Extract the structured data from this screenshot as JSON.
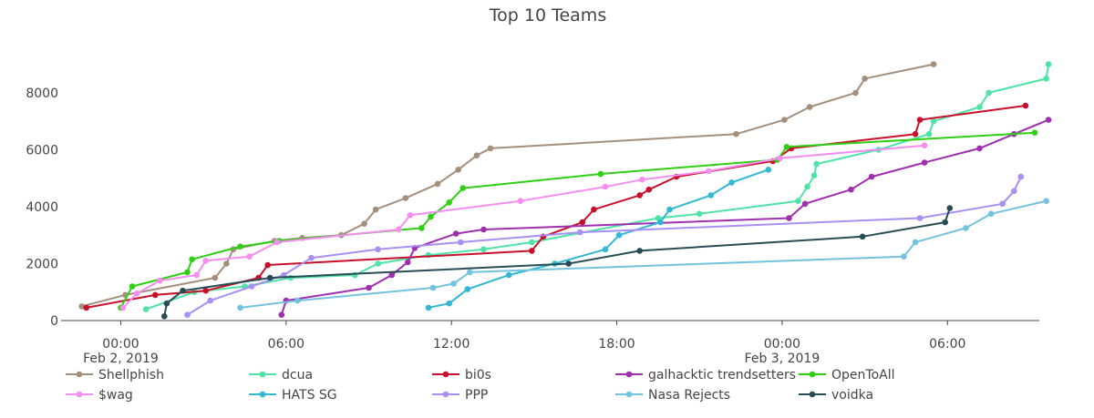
{
  "chart_data": {
    "type": "line",
    "title": "Top 10 Teams",
    "xlabel": "",
    "ylabel": "",
    "x_range": [
      "2019-02-01 21:50",
      "2019-02-03 09:20"
    ],
    "ylim": [
      0,
      9500
    ],
    "y_ticks": [
      0,
      2000,
      4000,
      6000,
      8000
    ],
    "y_tick_labels": [
      "0",
      "2000",
      "4000",
      "6000",
      "8000"
    ],
    "x_ticks": [
      {
        "t": "2019-02-02 00:00",
        "lines": [
          "00:00",
          "Feb 2, 2019"
        ]
      },
      {
        "t": "2019-02-02 06:00",
        "lines": [
          "06:00"
        ]
      },
      {
        "t": "2019-02-02 12:00",
        "lines": [
          "12:00"
        ]
      },
      {
        "t": "2019-02-02 18:00",
        "lines": [
          "18:00"
        ]
      },
      {
        "t": "2019-02-03 00:00",
        "lines": [
          "00:00",
          "Feb 3, 2019"
        ]
      },
      {
        "t": "2019-02-03 06:00",
        "lines": [
          "06:00"
        ]
      }
    ],
    "grid": false,
    "legend_position": "bottom",
    "series": [
      {
        "name": "Shellphish",
        "color": "#a48f7c",
        "points": [
          [
            "2019-02-01 22:35",
            500
          ],
          [
            "2019-02-02 00:10",
            900
          ],
          [
            "2019-02-02 03:25",
            1500
          ],
          [
            "2019-02-02 03:50",
            2000
          ],
          [
            "2019-02-02 04:05",
            2500
          ],
          [
            "2019-02-02 05:35",
            2800
          ],
          [
            "2019-02-02 06:35",
            2900
          ],
          [
            "2019-02-02 08:00",
            3000
          ],
          [
            "2019-02-02 08:50",
            3400
          ],
          [
            "2019-02-02 09:15",
            3900
          ],
          [
            "2019-02-02 10:20",
            4300
          ],
          [
            "2019-02-02 11:30",
            4800
          ],
          [
            "2019-02-02 12:15",
            5300
          ],
          [
            "2019-02-02 12:55",
            5800
          ],
          [
            "2019-02-02 13:25",
            6050
          ],
          [
            "2019-02-02 22:20",
            6550
          ],
          [
            "2019-02-03 00:05",
            7050
          ],
          [
            "2019-02-03 01:00",
            7500
          ],
          [
            "2019-02-03 02:40",
            8000
          ],
          [
            "2019-02-03 03:00",
            8500
          ],
          [
            "2019-02-03 05:30",
            9000
          ]
        ]
      },
      {
        "name": "dcua",
        "color": "#4fe3a8",
        "points": [
          [
            "2019-02-02 00:55",
            400
          ],
          [
            "2019-02-02 02:40",
            1000
          ],
          [
            "2019-02-02 04:30",
            1200
          ],
          [
            "2019-02-02 06:10",
            1500
          ],
          [
            "2019-02-02 08:30",
            1600
          ],
          [
            "2019-02-02 09:20",
            2000
          ],
          [
            "2019-02-02 11:10",
            2300
          ],
          [
            "2019-02-02 13:10",
            2500
          ],
          [
            "2019-02-02 14:55",
            2750
          ],
          [
            "2019-02-02 19:30",
            3600
          ],
          [
            "2019-02-02 21:00",
            3750
          ],
          [
            "2019-02-03 00:35",
            4200
          ],
          [
            "2019-02-03 00:55",
            4700
          ],
          [
            "2019-02-03 01:10",
            5100
          ],
          [
            "2019-02-03 01:15",
            5500
          ],
          [
            "2019-02-03 03:30",
            6000
          ],
          [
            "2019-02-03 05:20",
            6550
          ],
          [
            "2019-02-03 05:30",
            7000
          ],
          [
            "2019-02-03 07:10",
            7500
          ],
          [
            "2019-02-03 07:30",
            8000
          ],
          [
            "2019-02-03 09:35",
            8500
          ],
          [
            "2019-02-03 09:40",
            9000
          ]
        ]
      },
      {
        "name": "bi0s",
        "color": "#c9102b",
        "points": [
          [
            "2019-02-01 22:45",
            450
          ],
          [
            "2019-02-02 01:15",
            900
          ],
          [
            "2019-02-02 03:05",
            1050
          ],
          [
            "2019-02-02 05:00",
            1500
          ],
          [
            "2019-02-02 05:20",
            1950
          ],
          [
            "2019-02-02 14:55",
            2450
          ],
          [
            "2019-02-02 15:20",
            2950
          ],
          [
            "2019-02-02 16:45",
            3450
          ],
          [
            "2019-02-02 17:10",
            3900
          ],
          [
            "2019-02-02 18:50",
            4400
          ],
          [
            "2019-02-02 19:10",
            4600
          ],
          [
            "2019-02-02 20:10",
            5050
          ],
          [
            "2019-02-02 23:40",
            5600
          ],
          [
            "2019-02-03 00:20",
            6050
          ],
          [
            "2019-02-03 04:50",
            6550
          ],
          [
            "2019-02-03 05:00",
            7050
          ],
          [
            "2019-02-03 08:50",
            7550
          ]
        ]
      },
      {
        "name": "galhacktic trendsetters",
        "color": "#a02fb0",
        "points": [
          [
            "2019-02-02 05:50",
            200
          ],
          [
            "2019-02-02 06:00",
            700
          ],
          [
            "2019-02-02 09:00",
            1150
          ],
          [
            "2019-02-02 09:50",
            1600
          ],
          [
            "2019-02-02 10:25",
            2050
          ],
          [
            "2019-02-02 10:40",
            2550
          ],
          [
            "2019-02-02 12:10",
            3050
          ],
          [
            "2019-02-02 13:10",
            3200
          ],
          [
            "2019-02-03 00:15",
            3600
          ],
          [
            "2019-02-03 00:50",
            4100
          ],
          [
            "2019-02-03 02:30",
            4600
          ],
          [
            "2019-02-03 03:15",
            5050
          ],
          [
            "2019-02-03 05:10",
            5550
          ],
          [
            "2019-02-03 07:10",
            6050
          ],
          [
            "2019-02-03 08:25",
            6550
          ],
          [
            "2019-02-03 09:40",
            7050
          ]
        ]
      },
      {
        "name": "OpenToAll",
        "color": "#2fcf14",
        "points": [
          [
            "2019-02-02 00:00",
            450
          ],
          [
            "2019-02-02 00:25",
            1200
          ],
          [
            "2019-02-02 02:25",
            1700
          ],
          [
            "2019-02-02 02:35",
            2150
          ],
          [
            "2019-02-02 04:20",
            2600
          ],
          [
            "2019-02-02 05:45",
            2800
          ],
          [
            "2019-02-02 10:55",
            3250
          ],
          [
            "2019-02-02 11:15",
            3650
          ],
          [
            "2019-02-02 11:55",
            4150
          ],
          [
            "2019-02-02 12:25",
            4650
          ],
          [
            "2019-02-02 17:25",
            5150
          ],
          [
            "2019-02-02 23:50",
            5650
          ],
          [
            "2019-02-03 00:10",
            6100
          ],
          [
            "2019-02-03 09:10",
            6600
          ]
        ]
      },
      {
        "name": "$wag",
        "color": "#f58ef0",
        "points": [
          [
            "2019-02-02 00:05",
            450
          ],
          [
            "2019-02-02 00:35",
            950
          ],
          [
            "2019-02-02 01:25",
            1400
          ],
          [
            "2019-02-02 02:45",
            1600
          ],
          [
            "2019-02-02 03:05",
            2100
          ],
          [
            "2019-02-02 04:40",
            2250
          ],
          [
            "2019-02-02 05:40",
            2750
          ],
          [
            "2019-02-02 10:05",
            3200
          ],
          [
            "2019-02-02 10:30",
            3700
          ],
          [
            "2019-02-02 14:30",
            4200
          ],
          [
            "2019-02-02 17:35",
            4700
          ],
          [
            "2019-02-02 18:55",
            4950
          ],
          [
            "2019-02-02 21:20",
            5250
          ],
          [
            "2019-02-02 23:55",
            5700
          ],
          [
            "2019-02-03 05:10",
            6150
          ]
        ]
      },
      {
        "name": "HATS SG",
        "color": "#32b8d4",
        "points": [
          [
            "2019-02-02 11:10",
            450
          ],
          [
            "2019-02-02 11:55",
            600
          ],
          [
            "2019-02-02 12:35",
            1100
          ],
          [
            "2019-02-02 14:05",
            1600
          ],
          [
            "2019-02-02 15:45",
            2000
          ],
          [
            "2019-02-02 17:35",
            2500
          ],
          [
            "2019-02-02 18:05",
            3000
          ],
          [
            "2019-02-02 19:35",
            3450
          ],
          [
            "2019-02-02 19:55",
            3900
          ],
          [
            "2019-02-02 21:25",
            4400
          ],
          [
            "2019-02-02 22:10",
            4850
          ],
          [
            "2019-02-02 23:30",
            5300
          ]
        ]
      },
      {
        "name": "PPP",
        "color": "#a88ff2",
        "points": [
          [
            "2019-02-02 02:25",
            200
          ],
          [
            "2019-02-02 03:15",
            700
          ],
          [
            "2019-02-02 04:45",
            1200
          ],
          [
            "2019-02-02 05:55",
            1600
          ],
          [
            "2019-02-02 06:55",
            2200
          ],
          [
            "2019-02-02 09:20",
            2500
          ],
          [
            "2019-02-02 12:20",
            2750
          ],
          [
            "2019-02-02 16:40",
            3100
          ],
          [
            "2019-02-03 05:00",
            3600
          ],
          [
            "2019-02-03 08:00",
            4100
          ],
          [
            "2019-02-03 08:25",
            4550
          ],
          [
            "2019-02-03 08:40",
            5050
          ]
        ]
      },
      {
        "name": "Nasa Rejects",
        "color": "#73c2de",
        "points": [
          [
            "2019-02-02 04:20",
            450
          ],
          [
            "2019-02-02 06:25",
            700
          ],
          [
            "2019-02-02 11:20",
            1150
          ],
          [
            "2019-02-02 12:05",
            1300
          ],
          [
            "2019-02-02 12:40",
            1700
          ],
          [
            "2019-02-03 04:25",
            2250
          ],
          [
            "2019-02-03 04:50",
            2750
          ],
          [
            "2019-02-03 06:40",
            3250
          ],
          [
            "2019-02-03 07:35",
            3750
          ],
          [
            "2019-02-03 09:35",
            4200
          ]
        ]
      },
      {
        "name": "voidka",
        "color": "#284c56",
        "points": [
          [
            "2019-02-02 01:35",
            150
          ],
          [
            "2019-02-02 01:40",
            600
          ],
          [
            "2019-02-02 02:15",
            1050
          ],
          [
            "2019-02-02 05:25",
            1500
          ],
          [
            "2019-02-02 16:15",
            2000
          ],
          [
            "2019-02-02 18:50",
            2450
          ],
          [
            "2019-02-03 02:55",
            2950
          ],
          [
            "2019-02-03 05:55",
            3450
          ],
          [
            "2019-02-03 06:05",
            3950
          ]
        ]
      }
    ]
  }
}
